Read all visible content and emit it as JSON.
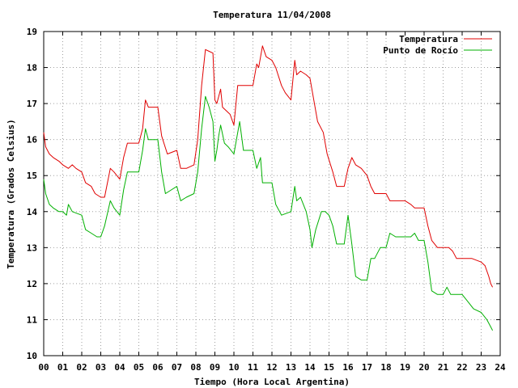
{
  "chart_data": {
    "type": "line",
    "title": "Temperatura 11/04/2008",
    "xlabel": "Tiempo (Hora Local Argentina)",
    "ylabel": "Temperatura (Grados Celsius)",
    "xlim": [
      0,
      24
    ],
    "ylim": [
      10,
      19
    ],
    "xticks": [
      0,
      1,
      2,
      3,
      4,
      5,
      6,
      7,
      8,
      9,
      10,
      11,
      12,
      13,
      14,
      15,
      16,
      17,
      18,
      19,
      20,
      21,
      22,
      23,
      24
    ],
    "xtick_labels": [
      "00",
      "01",
      "02",
      "03",
      "04",
      "05",
      "06",
      "07",
      "08",
      "09",
      "10",
      "11",
      "12",
      "13",
      "14",
      "15",
      "16",
      "17",
      "18",
      "19",
      "20",
      "21",
      "22",
      "23",
      "24"
    ],
    "yticks": [
      10,
      11,
      12,
      13,
      14,
      15,
      16,
      17,
      18,
      19
    ],
    "ytick_labels": [
      "10",
      "11",
      "12",
      "13",
      "14",
      "15",
      "16",
      "17",
      "18",
      "19"
    ],
    "grid": true,
    "legend_position": "top-right",
    "series": [
      {
        "name": "Temperatura",
        "color": "#e00000",
        "points": [
          [
            0.0,
            16.2
          ],
          [
            0.1,
            15.8
          ],
          [
            0.3,
            15.6
          ],
          [
            0.5,
            15.5
          ],
          [
            0.8,
            15.4
          ],
          [
            1.0,
            15.3
          ],
          [
            1.3,
            15.2
          ],
          [
            1.5,
            15.3
          ],
          [
            1.7,
            15.2
          ],
          [
            2.0,
            15.1
          ],
          [
            2.2,
            14.8
          ],
          [
            2.5,
            14.7
          ],
          [
            2.7,
            14.5
          ],
          [
            3.0,
            14.4
          ],
          [
            3.2,
            14.4
          ],
          [
            3.5,
            15.2
          ],
          [
            3.7,
            15.1
          ],
          [
            4.0,
            14.9
          ],
          [
            4.2,
            15.5
          ],
          [
            4.4,
            15.9
          ],
          [
            4.6,
            15.9
          ],
          [
            5.0,
            15.9
          ],
          [
            5.2,
            16.3
          ],
          [
            5.35,
            17.1
          ],
          [
            5.5,
            16.9
          ],
          [
            6.0,
            16.9
          ],
          [
            6.2,
            16.1
          ],
          [
            6.5,
            15.6
          ],
          [
            7.0,
            15.7
          ],
          [
            7.2,
            15.2
          ],
          [
            7.5,
            15.2
          ],
          [
            7.9,
            15.3
          ],
          [
            8.1,
            16.0
          ],
          [
            8.3,
            17.5
          ],
          [
            8.5,
            18.5
          ],
          [
            8.7,
            18.45
          ],
          [
            8.9,
            18.4
          ],
          [
            9.0,
            17.1
          ],
          [
            9.1,
            17.0
          ],
          [
            9.3,
            17.4
          ],
          [
            9.4,
            16.9
          ],
          [
            9.6,
            16.8
          ],
          [
            9.8,
            16.7
          ],
          [
            10.0,
            16.4
          ],
          [
            10.2,
            17.5
          ],
          [
            10.5,
            17.5
          ],
          [
            11.0,
            17.5
          ],
          [
            11.2,
            18.1
          ],
          [
            11.3,
            18.0
          ],
          [
            11.5,
            18.6
          ],
          [
            11.7,
            18.3
          ],
          [
            12.0,
            18.2
          ],
          [
            12.2,
            18.0
          ],
          [
            12.5,
            17.5
          ],
          [
            12.7,
            17.3
          ],
          [
            13.0,
            17.1
          ],
          [
            13.2,
            18.2
          ],
          [
            13.3,
            17.8
          ],
          [
            13.5,
            17.9
          ],
          [
            13.8,
            17.8
          ],
          [
            14.0,
            17.7
          ],
          [
            14.2,
            17.1
          ],
          [
            14.4,
            16.5
          ],
          [
            14.7,
            16.2
          ],
          [
            14.9,
            15.6
          ],
          [
            15.2,
            15.1
          ],
          [
            15.4,
            14.7
          ],
          [
            15.8,
            14.7
          ],
          [
            16.0,
            15.2
          ],
          [
            16.2,
            15.5
          ],
          [
            16.4,
            15.3
          ],
          [
            16.7,
            15.2
          ],
          [
            17.0,
            15.0
          ],
          [
            17.2,
            14.7
          ],
          [
            17.4,
            14.5
          ],
          [
            17.8,
            14.5
          ],
          [
            18.0,
            14.5
          ],
          [
            18.2,
            14.3
          ],
          [
            18.5,
            14.3
          ],
          [
            19.0,
            14.3
          ],
          [
            19.3,
            14.2
          ],
          [
            19.5,
            14.1
          ],
          [
            20.0,
            14.1
          ],
          [
            20.2,
            13.6
          ],
          [
            20.4,
            13.2
          ],
          [
            20.7,
            13.0
          ],
          [
            21.0,
            13.0
          ],
          [
            21.3,
            13.0
          ],
          [
            21.5,
            12.9
          ],
          [
            21.7,
            12.7
          ],
          [
            22.0,
            12.7
          ],
          [
            22.5,
            12.7
          ],
          [
            23.0,
            12.6
          ],
          [
            23.2,
            12.5
          ],
          [
            23.4,
            12.2
          ],
          [
            23.5,
            12.0
          ],
          [
            23.6,
            11.9
          ]
        ]
      },
      {
        "name": "Punto de Rocío",
        "color": "#00b000",
        "points": [
          [
            0.0,
            14.9
          ],
          [
            0.1,
            14.5
          ],
          [
            0.3,
            14.2
          ],
          [
            0.5,
            14.1
          ],
          [
            0.8,
            14.0
          ],
          [
            1.0,
            14.0
          ],
          [
            1.2,
            13.9
          ],
          [
            1.3,
            14.2
          ],
          [
            1.5,
            14.0
          ],
          [
            2.0,
            13.9
          ],
          [
            2.2,
            13.5
          ],
          [
            2.5,
            13.4
          ],
          [
            2.8,
            13.3
          ],
          [
            3.0,
            13.3
          ],
          [
            3.2,
            13.6
          ],
          [
            3.5,
            14.3
          ],
          [
            3.7,
            14.1
          ],
          [
            4.0,
            13.9
          ],
          [
            4.2,
            14.6
          ],
          [
            4.4,
            15.1
          ],
          [
            4.6,
            15.1
          ],
          [
            5.0,
            15.1
          ],
          [
            5.2,
            15.7
          ],
          [
            5.35,
            16.3
          ],
          [
            5.5,
            16.0
          ],
          [
            6.0,
            16.0
          ],
          [
            6.2,
            15.1
          ],
          [
            6.4,
            14.5
          ],
          [
            6.7,
            14.6
          ],
          [
            7.0,
            14.7
          ],
          [
            7.2,
            14.3
          ],
          [
            7.5,
            14.4
          ],
          [
            7.9,
            14.5
          ],
          [
            8.1,
            15.1
          ],
          [
            8.3,
            16.3
          ],
          [
            8.5,
            17.2
          ],
          [
            8.7,
            16.9
          ],
          [
            8.9,
            16.5
          ],
          [
            9.0,
            15.4
          ],
          [
            9.1,
            15.7
          ],
          [
            9.2,
            16.1
          ],
          [
            9.3,
            16.4
          ],
          [
            9.5,
            15.9
          ],
          [
            9.7,
            15.8
          ],
          [
            10.0,
            15.6
          ],
          [
            10.3,
            16.5
          ],
          [
            10.5,
            15.7
          ],
          [
            10.8,
            15.7
          ],
          [
            11.0,
            15.7
          ],
          [
            11.2,
            15.2
          ],
          [
            11.4,
            15.5
          ],
          [
            11.5,
            14.8
          ],
          [
            11.8,
            14.8
          ],
          [
            12.0,
            14.8
          ],
          [
            12.2,
            14.2
          ],
          [
            12.5,
            13.9
          ],
          [
            13.0,
            14.0
          ],
          [
            13.2,
            14.7
          ],
          [
            13.3,
            14.3
          ],
          [
            13.5,
            14.4
          ],
          [
            13.8,
            14.0
          ],
          [
            14.0,
            13.5
          ],
          [
            14.1,
            13.0
          ],
          [
            14.3,
            13.5
          ],
          [
            14.6,
            14.0
          ],
          [
            14.8,
            14.0
          ],
          [
            15.0,
            13.9
          ],
          [
            15.2,
            13.6
          ],
          [
            15.4,
            13.1
          ],
          [
            15.8,
            13.1
          ],
          [
            16.0,
            13.9
          ],
          [
            16.2,
            13.1
          ],
          [
            16.4,
            12.2
          ],
          [
            16.7,
            12.1
          ],
          [
            17.0,
            12.1
          ],
          [
            17.2,
            12.7
          ],
          [
            17.4,
            12.7
          ],
          [
            17.7,
            13.0
          ],
          [
            18.0,
            13.0
          ],
          [
            18.2,
            13.4
          ],
          [
            18.5,
            13.3
          ],
          [
            19.0,
            13.3
          ],
          [
            19.3,
            13.3
          ],
          [
            19.5,
            13.4
          ],
          [
            19.7,
            13.2
          ],
          [
            20.0,
            13.2
          ],
          [
            20.2,
            12.6
          ],
          [
            20.4,
            11.8
          ],
          [
            20.7,
            11.7
          ],
          [
            21.0,
            11.7
          ],
          [
            21.2,
            11.9
          ],
          [
            21.4,
            11.7
          ],
          [
            21.7,
            11.7
          ],
          [
            22.0,
            11.7
          ],
          [
            22.3,
            11.5
          ],
          [
            22.6,
            11.3
          ],
          [
            23.0,
            11.2
          ],
          [
            23.3,
            11.0
          ],
          [
            23.5,
            10.8
          ],
          [
            23.6,
            10.7
          ]
        ]
      }
    ]
  }
}
